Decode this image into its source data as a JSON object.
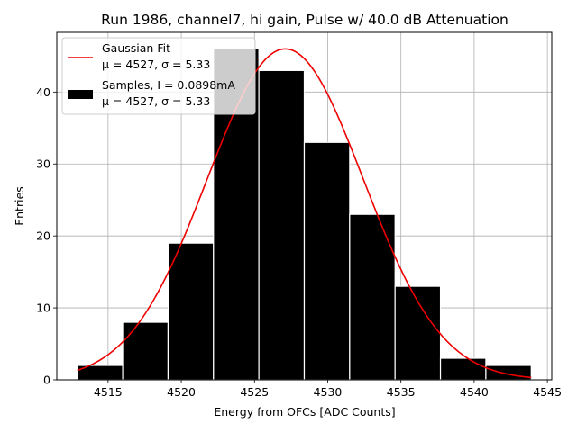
{
  "chart_data": {
    "type": "bar",
    "title": "Run 1986, channel7, hi gain, Pulse w/ 40.0 dB Attenuation",
    "xlabel": "Energy from OFCs [ADC Counts]",
    "ylabel": "Entries",
    "xlim": [
      4511.5,
      4545.3
    ],
    "ylim": [
      0,
      48.3
    ],
    "xticks": [
      4515,
      4520,
      4525,
      4530,
      4535,
      4540,
      4545
    ],
    "yticks": [
      0,
      10,
      20,
      30,
      40
    ],
    "grid": true,
    "legend_position": "top-left",
    "histogram": {
      "name": "Samples, I = 0.0898mA",
      "stats": "μ = 4527, σ = 5.33",
      "color": "#000000",
      "bin_edges": [
        4512.9,
        4516.0,
        4519.1,
        4522.2,
        4525.3,
        4528.4,
        4531.5,
        4534.6,
        4537.7,
        4540.8,
        4543.9
      ],
      "counts": [
        2,
        8,
        19,
        46,
        43,
        33,
        23,
        13,
        3,
        2
      ]
    },
    "fit": {
      "name": "Gaussian Fit",
      "stats": "μ = 4527, σ = 5.33",
      "color": "#ee0000",
      "mu": 4527.1,
      "sigma": 5.33,
      "amplitude": 46.0,
      "x_range": [
        4512.9,
        4543.9
      ]
    }
  }
}
